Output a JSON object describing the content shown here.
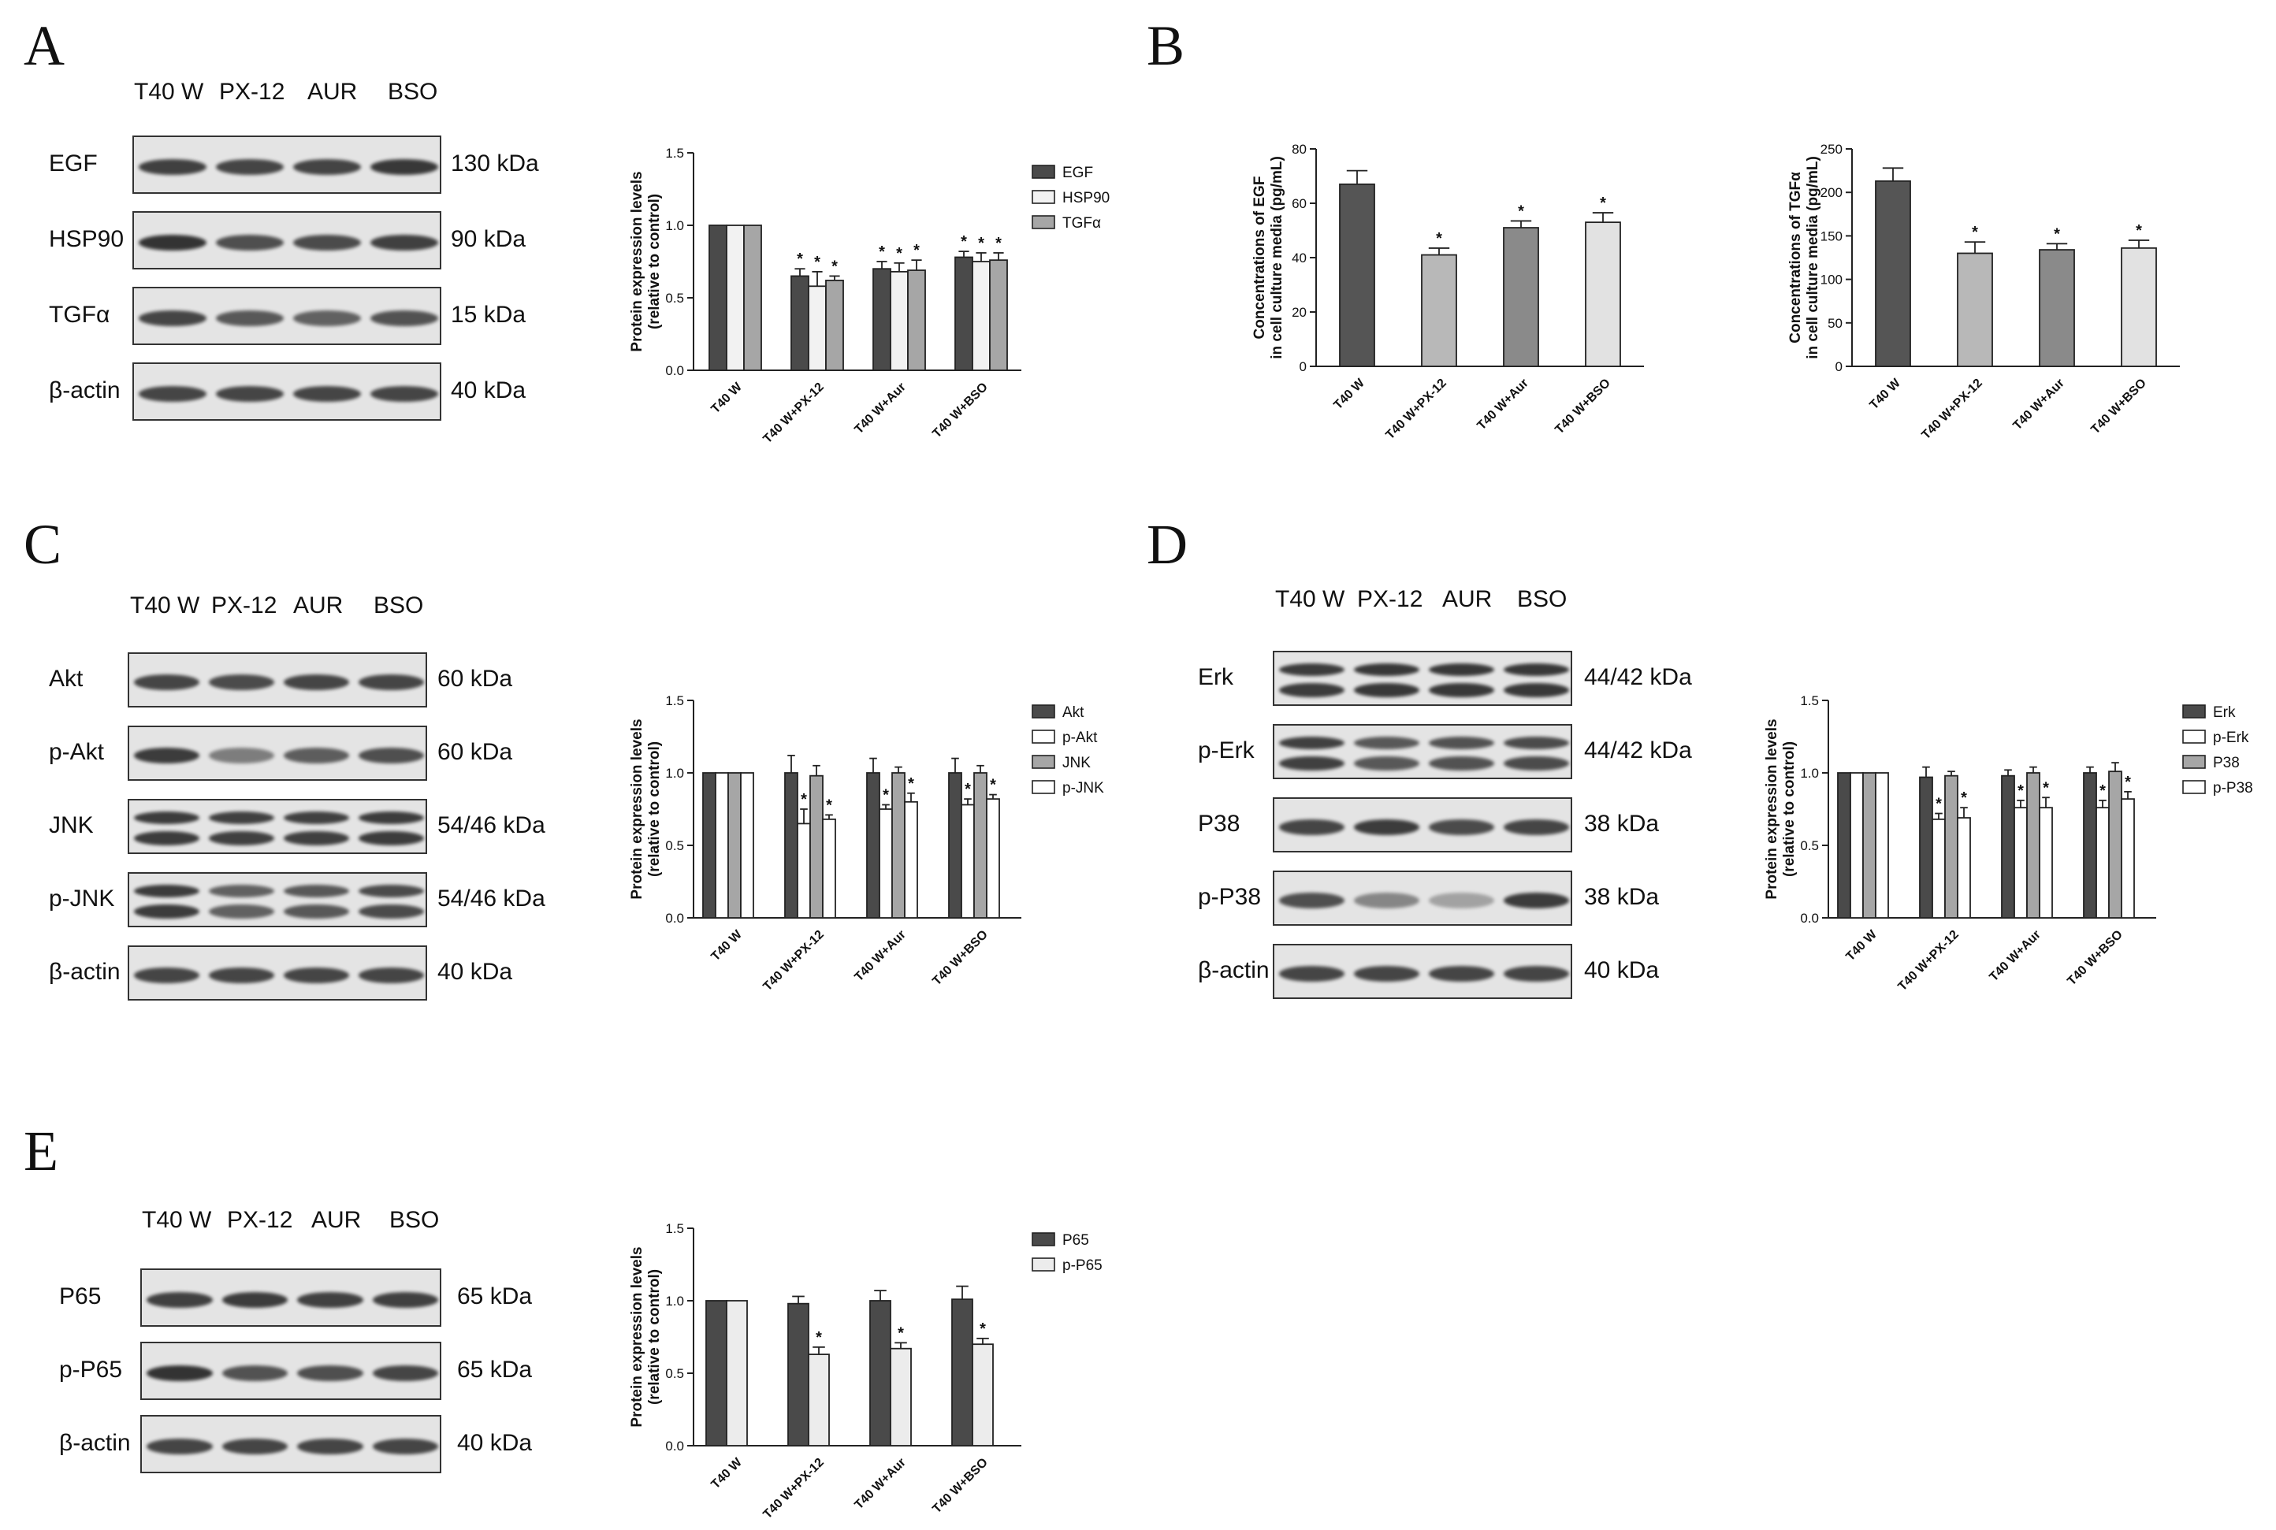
{
  "panels": {
    "A": {
      "letter": "A",
      "lanes": [
        "T40 W",
        "PX-12",
        "AUR",
        "BSO"
      ],
      "blots": [
        {
          "protein": "EGF",
          "kda": "130 kDa",
          "intensity": [
            0.88,
            0.85,
            0.86,
            0.92
          ]
        },
        {
          "protein": "HSP90",
          "kda": "90 kDa",
          "intensity": [
            0.95,
            0.8,
            0.82,
            0.88
          ]
        },
        {
          "protein": "TGFα",
          "kda": "15 kDa",
          "intensity": [
            0.85,
            0.75,
            0.7,
            0.78
          ]
        },
        {
          "protein": "β-actin",
          "kda": "40 kDa",
          "intensity": [
            0.85,
            0.85,
            0.85,
            0.85
          ]
        }
      ]
    },
    "B": {
      "letter": "B"
    },
    "C": {
      "letter": "C",
      "lanes": [
        "T40 W",
        "PX-12",
        "AUR",
        "BSO"
      ],
      "blots": [
        {
          "protein": "Akt",
          "kda": "60 kDa",
          "intensity": [
            0.85,
            0.82,
            0.85,
            0.85
          ]
        },
        {
          "protein": "p-Akt",
          "kda": "60 kDa",
          "intensity": [
            0.9,
            0.55,
            0.72,
            0.8
          ]
        },
        {
          "protein": "JNK",
          "kda": "54/46 kDa",
          "intensity": [
            0.9,
            0.88,
            0.88,
            0.9
          ]
        },
        {
          "protein": "p-JNK",
          "kda": "54/46 kDa",
          "intensity": [
            0.9,
            0.7,
            0.75,
            0.82
          ]
        },
        {
          "protein": "β-actin",
          "kda": "40 kDa",
          "intensity": [
            0.85,
            0.85,
            0.85,
            0.85
          ]
        }
      ]
    },
    "D": {
      "letter": "D",
      "lanes": [
        "T40 W",
        "PX-12",
        "AUR",
        "BSO"
      ],
      "blots": [
        {
          "protein": "Erk",
          "kda": "44/42 kDa",
          "intensity": [
            0.9,
            0.92,
            0.92,
            0.92
          ]
        },
        {
          "protein": "p-Erk",
          "kda": "44/42 kDa",
          "intensity": [
            0.88,
            0.75,
            0.78,
            0.82
          ]
        },
        {
          "protein": "P38",
          "kda": "38 kDa",
          "intensity": [
            0.85,
            0.9,
            0.82,
            0.85
          ]
        },
        {
          "protein": "p-P38",
          "kda": "38 kDa",
          "intensity": [
            0.8,
            0.5,
            0.35,
            0.9
          ]
        },
        {
          "protein": "β-actin",
          "kda": "40 kDa",
          "intensity": [
            0.85,
            0.85,
            0.85,
            0.85
          ]
        }
      ]
    },
    "E": {
      "letter": "E",
      "lanes": [
        "T40 W",
        "PX-12",
        "AUR",
        "BSO"
      ],
      "blots": [
        {
          "protein": "P65",
          "kda": "65 kDa",
          "intensity": [
            0.88,
            0.9,
            0.88,
            0.88
          ]
        },
        {
          "protein": "p-P65",
          "kda": "65 kDa",
          "intensity": [
            0.95,
            0.78,
            0.8,
            0.85
          ]
        },
        {
          "protein": "β-actin",
          "kda": "40 kDa",
          "intensity": [
            0.85,
            0.85,
            0.85,
            0.85
          ]
        }
      ]
    }
  },
  "chart_data": [
    {
      "id": "A",
      "type": "bar",
      "categories": [
        "T40 W",
        "T40 W+PX-12",
        "T40 W+Aur",
        "T40 W+BSO"
      ],
      "ylabel": "Protein expression levels\n(relative to control)",
      "ylim": [
        0,
        1.5
      ],
      "yticks": [
        "0.0",
        "0.5",
        "1.0",
        "1.5"
      ],
      "ytick_values": [
        0,
        0.5,
        1.0,
        1.5
      ],
      "legend": "top-right",
      "series": [
        {
          "name": "EGF",
          "color": "#4a4a4a",
          "values": [
            1.0,
            0.65,
            0.7,
            0.78
          ],
          "errors": [
            0,
            0.05,
            0.05,
            0.04
          ],
          "sig": [
            false,
            true,
            true,
            true
          ]
        },
        {
          "name": "HSP90",
          "color": "#f2f2f2",
          "values": [
            1.0,
            0.58,
            0.68,
            0.75
          ],
          "errors": [
            0,
            0.1,
            0.06,
            0.06
          ],
          "sig": [
            false,
            true,
            true,
            true
          ]
        },
        {
          "name": "TGFα",
          "color": "#a6a6a6",
          "values": [
            1.0,
            0.62,
            0.69,
            0.76
          ],
          "errors": [
            0,
            0.03,
            0.07,
            0.05
          ],
          "sig": [
            false,
            true,
            true,
            true
          ]
        }
      ]
    },
    {
      "id": "B1",
      "type": "bar",
      "categories": [
        "T40 W",
        "T40 W+PX-12",
        "T40 W+Aur",
        "T40 W+BSO"
      ],
      "ylabel": "Concentrations of EGF\nin cell culture media (pg/mL)",
      "ylim": [
        0,
        80
      ],
      "yticks": [
        "0",
        "20",
        "40",
        "60",
        "80"
      ],
      "ytick_values": [
        0,
        20,
        40,
        60,
        80
      ],
      "series": [
        {
          "name": "",
          "colors": [
            "#555555",
            "#b8b8b8",
            "#8a8a8a",
            "#e2e2e2"
          ],
          "values": [
            67,
            41,
            51,
            53
          ],
          "errors": [
            5,
            2.5,
            2.5,
            3.5
          ],
          "sig": [
            false,
            true,
            true,
            true
          ]
        }
      ]
    },
    {
      "id": "B2",
      "type": "bar",
      "categories": [
        "T40 W",
        "T40 W+PX-12",
        "T40 W+Aur",
        "T40 W+BSO"
      ],
      "ylabel": "Concentrations of TGFα\nin cell culture media (pg/mL)",
      "ylim": [
        0,
        250
      ],
      "yticks": [
        "0",
        "50",
        "100",
        "150",
        "200",
        "250"
      ],
      "ytick_values": [
        0,
        50,
        100,
        150,
        200,
        250
      ],
      "series": [
        {
          "name": "",
          "colors": [
            "#555555",
            "#b8b8b8",
            "#8a8a8a",
            "#e2e2e2"
          ],
          "values": [
            213,
            130,
            134,
            136
          ],
          "errors": [
            15,
            13,
            7,
            9
          ],
          "sig": [
            false,
            true,
            true,
            true
          ]
        }
      ]
    },
    {
      "id": "C",
      "type": "bar",
      "categories": [
        "T40 W",
        "T40 W+PX-12",
        "T40 W+Aur",
        "T40 W+BSO"
      ],
      "ylabel": "Protein expression levels\n(relative to control)",
      "ylim": [
        0,
        1.5
      ],
      "yticks": [
        "0.0",
        "0.5",
        "1.0",
        "1.5"
      ],
      "ytick_values": [
        0,
        0.5,
        1.0,
        1.5
      ],
      "legend": "top-right",
      "series": [
        {
          "name": "Akt",
          "color": "#4a4a4a",
          "values": [
            1.0,
            1.0,
            1.0,
            1.0
          ],
          "errors": [
            0,
            0.12,
            0.1,
            0.1
          ],
          "sig": [
            false,
            false,
            false,
            false
          ]
        },
        {
          "name": "p-Akt",
          "color": "#ffffff",
          "values": [
            1.0,
            0.65,
            0.75,
            0.78
          ],
          "errors": [
            0,
            0.1,
            0.03,
            0.04
          ],
          "sig": [
            false,
            true,
            true,
            true
          ]
        },
        {
          "name": "JNK",
          "color": "#a6a6a6",
          "values": [
            1.0,
            0.98,
            1.0,
            1.0
          ],
          "errors": [
            0,
            0.07,
            0.04,
            0.05
          ],
          "sig": [
            false,
            false,
            false,
            false
          ]
        },
        {
          "name": "p-JNK",
          "color": "#ffffff",
          "values": [
            1.0,
            0.68,
            0.8,
            0.82
          ],
          "errors": [
            0,
            0.03,
            0.06,
            0.03
          ],
          "sig": [
            false,
            true,
            true,
            true
          ]
        }
      ]
    },
    {
      "id": "D",
      "type": "bar",
      "categories": [
        "T40 W",
        "T40 W+PX-12",
        "T40 W+Aur",
        "T40 W+BSO"
      ],
      "ylabel": "Protein expression levels\n(relative to control)",
      "ylim": [
        0,
        1.5
      ],
      "yticks": [
        "0.0",
        "0.5",
        "1.0",
        "1.5"
      ],
      "ytick_values": [
        0,
        0.5,
        1.0,
        1.5
      ],
      "legend": "top-right",
      "series": [
        {
          "name": "Erk",
          "color": "#4a4a4a",
          "values": [
            1.0,
            0.97,
            0.98,
            1.0
          ],
          "errors": [
            0,
            0.07,
            0.04,
            0.04
          ],
          "sig": [
            false,
            false,
            false,
            false
          ]
        },
        {
          "name": "p-Erk",
          "color": "#ffffff",
          "values": [
            1.0,
            0.68,
            0.76,
            0.76
          ],
          "errors": [
            0,
            0.04,
            0.05,
            0.05
          ],
          "sig": [
            false,
            true,
            true,
            true
          ]
        },
        {
          "name": "P38",
          "color": "#a6a6a6",
          "values": [
            1.0,
            0.98,
            1.0,
            1.01
          ],
          "errors": [
            0,
            0.03,
            0.04,
            0.06
          ],
          "sig": [
            false,
            false,
            false,
            false
          ]
        },
        {
          "name": "p-P38",
          "color": "#ffffff",
          "values": [
            1.0,
            0.69,
            0.76,
            0.82
          ],
          "errors": [
            0,
            0.07,
            0.07,
            0.05
          ],
          "sig": [
            false,
            true,
            true,
            true
          ]
        }
      ]
    },
    {
      "id": "E",
      "type": "bar",
      "categories": [
        "T40 W",
        "T40 W+PX-12",
        "T40 W+Aur",
        "T40 W+BSO"
      ],
      "ylabel": "Protein expression levels\n(relative to control)",
      "ylim": [
        0,
        1.5
      ],
      "yticks": [
        "0.0",
        "0.5",
        "1.0",
        "1.5"
      ],
      "ytick_values": [
        0,
        0.5,
        1.0,
        1.5
      ],
      "legend": "top-right",
      "series": [
        {
          "name": "P65",
          "color": "#4a4a4a",
          "values": [
            1.0,
            0.98,
            1.0,
            1.01
          ],
          "errors": [
            0,
            0.05,
            0.07,
            0.09
          ],
          "sig": [
            false,
            false,
            false,
            false
          ]
        },
        {
          "name": "p-P65",
          "color": "#ececec",
          "values": [
            1.0,
            0.63,
            0.67,
            0.7
          ],
          "errors": [
            0,
            0.05,
            0.04,
            0.04
          ],
          "sig": [
            false,
            true,
            true,
            true
          ]
        }
      ]
    }
  ]
}
